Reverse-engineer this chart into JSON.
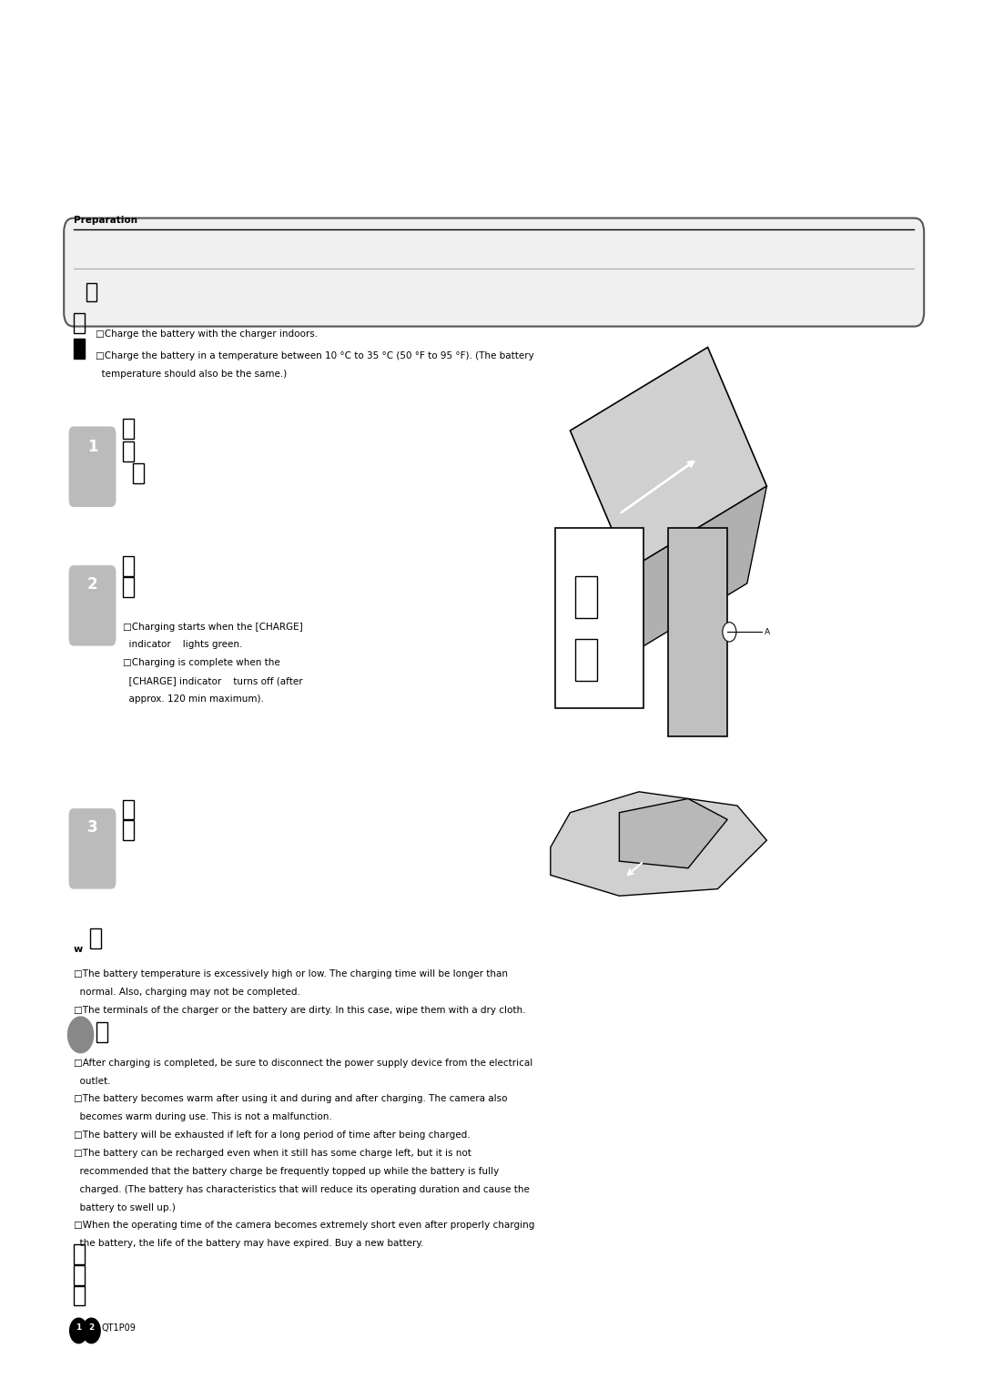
{
  "bg_color": "#ffffff",
  "page_width": 10.8,
  "page_height": 15.26,
  "section_label": "Preparation",
  "intro_line1": "□Charge the battery with the charger indoors.",
  "intro_line2": "□Charge the battery in a temperature between 10 °C to 35 °C (50 °F to 95 °F). (The battery",
  "intro_line2b": "  temperature should also be the same.)",
  "step2_note1": "□Charging starts when the [CHARGE]",
  "step2_note1b": "  indicator    lights green.",
  "step2_note2": "□Charging is complete when the",
  "step2_note2b": "  [CHARGE] indicator    turns off (after",
  "step2_note2c": "  approx. 120 min maximum).",
  "warning1": "□The battery temperature is excessively high or low. The charging time will be longer than",
  "warning1b": "  normal. Also, charging may not be completed.",
  "warning2": "□The terminals of the charger or the battery are dirty. In this case, wipe them with a dry cloth.",
  "note1": "□After charging is completed, be sure to disconnect the power supply device from the electrical",
  "note1b": "  outlet.",
  "note2": "□The battery becomes warm after using it and during and after charging. The camera also",
  "note2b": "  becomes warm during use. This is not a malfunction.",
  "note3": "□The battery will be exhausted if left for a long period of time after being charged.",
  "note4": "□The battery can be recharged even when it still has some charge left, but it is not",
  "note4b": "  recommended that the battery charge be frequently topped up while the battery is fully",
  "note4c": "  charged. (The battery has characteristics that will reduce its operating duration and cause the",
  "note4d": "  battery to swell up.)",
  "note5": "□When the operating time of the camera becomes extremely short even after properly charging",
  "note5b": "  the battery, the life of the battery may have expired. Buy a new battery.",
  "footer_code": "QT1P09"
}
